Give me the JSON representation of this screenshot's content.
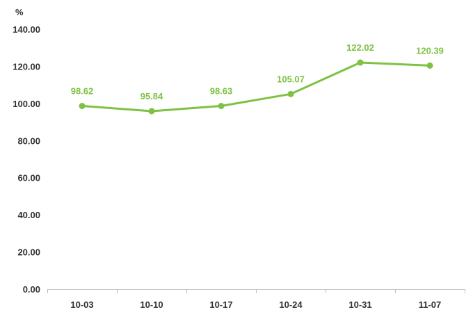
{
  "chart_data": {
    "type": "line",
    "title": "",
    "xlabel": "",
    "ylabel": "%",
    "ylim": [
      0,
      140
    ],
    "y_ticks": [
      "0.00",
      "20.00",
      "40.00",
      "60.00",
      "80.00",
      "100.00",
      "120.00",
      "140.00"
    ],
    "grid": false,
    "categories": [
      "10-03",
      "10-10",
      "10-17",
      "10-24",
      "10-31",
      "11-07"
    ],
    "series": [
      {
        "values": [
          98.62,
          95.84,
          98.63,
          105.07,
          122.02,
          120.39
        ],
        "data_labels": [
          "98.62",
          "95.84",
          "98.63",
          "105.07",
          "122.02",
          "120.39"
        ],
        "color": "#7dc242"
      }
    ],
    "axis_color": "#bfbfbf"
  }
}
